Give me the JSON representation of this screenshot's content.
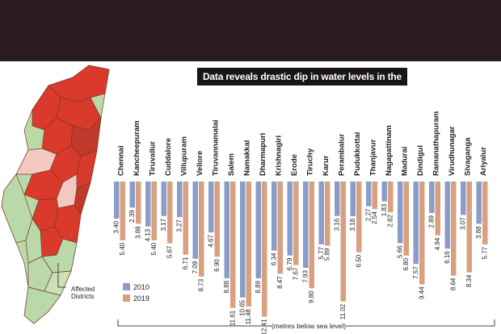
{
  "map": {
    "legend_label_line1": "Affected",
    "legend_label_line2": "Districts",
    "colors": {
      "affected": "#d93a2b",
      "unaffected": "#b9d9a8",
      "border": "#7a3a2a",
      "light": "#f2c8c0"
    }
  },
  "chart_data": {
    "type": "bar",
    "orientation": "vertical-down",
    "title": "Data reveals drastic dip in water levels in the past decade",
    "xlabel": "(metres below sea level)",
    "categories": [
      "Chennai",
      "Kancheepuram",
      "Tiruvallur",
      "Cuddalore",
      "Villupuram",
      "Vellore",
      "Tiruvannamalai",
      "Salem",
      "Namakkal",
      "Dharmapuri",
      "Krishnagiri",
      "Erode",
      "Tiruchy",
      "Karur",
      "Perambalur",
      "Pudukkottai",
      "Thanjavur",
      "Nagapattinam",
      "Madurai",
      "Dindigul",
      "Ramanathapuram",
      "Virudhunagar",
      "Sivaganga",
      "Ariyalur"
    ],
    "series": [
      {
        "name": "2010",
        "color": "#8a9cc8",
        "values": [
          3.4,
          2.39,
          4.13,
          3.17,
          3.27,
          7.09,
          4.67,
          8.88,
          10.65,
          8.89,
          6.34,
          6.79,
          7.93,
          5.77,
          3.16,
          3.18,
          2.27,
          1.83,
          5.66,
          7.57,
          2.89,
          6.16,
          3.07,
          3.88
        ]
      },
      {
        "name": "2019",
        "color": "#d8a07e",
        "values": [
          5.4,
          3.88,
          5.4,
          5.67,
          6.71,
          8.73,
          6.9,
          11.61,
          11.48,
          12.41,
          8.47,
          7.67,
          9.8,
          5.89,
          11.02,
          6.5,
          2.54,
          2.82,
          6.8,
          9.44,
          4.94,
          8.64,
          8.34,
          5.77
        ]
      }
    ],
    "ylim": [
      0,
      13
    ],
    "legend": [
      "2010",
      "2019"
    ],
    "legend_position": "bottom-left"
  }
}
